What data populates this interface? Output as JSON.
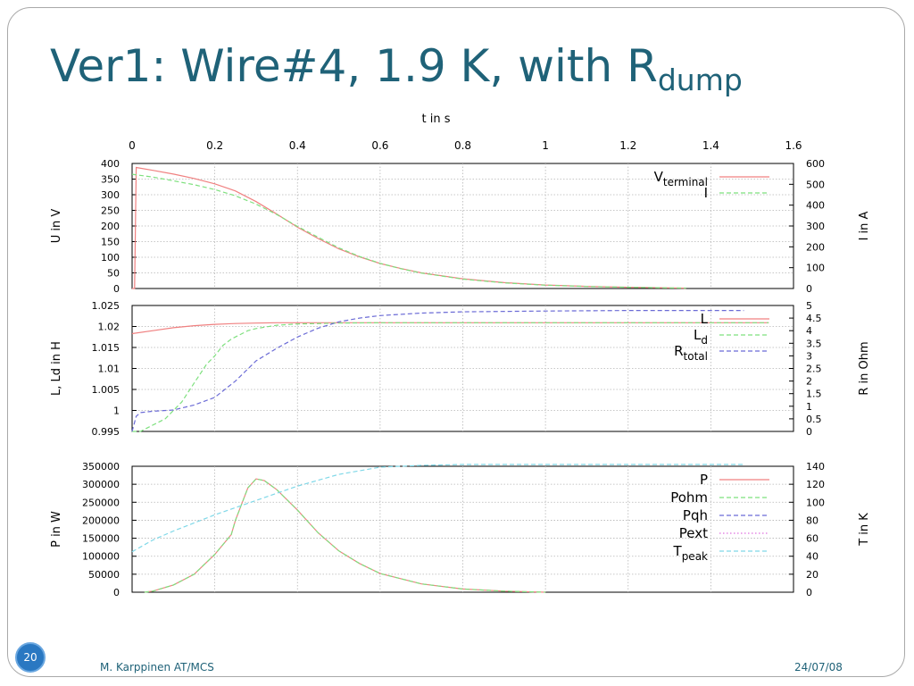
{
  "slide": {
    "title_main": "Ver1: Wire#4, 1.9 K, with R",
    "title_sub": "dump",
    "number": "20",
    "author": "M. Karppinen AT/MCS",
    "date": "24/07/08",
    "title_color": "#1f6278",
    "badge_color": "#2a78c2"
  },
  "chart_data": {
    "type": "line",
    "x_axis": {
      "label": "t in s",
      "range": [
        0,
        1.6
      ],
      "ticks": [
        "0",
        "0.2",
        "0.4",
        "0.6",
        "0.8",
        "1",
        "1.2",
        "1.4",
        "1.6"
      ],
      "position": "top"
    },
    "grid": true,
    "legend_position": "top-right",
    "panels": [
      {
        "name": "voltage-current",
        "left_axis": {
          "label": "U in V",
          "range": [
            0,
            400
          ],
          "ticks": [
            "0",
            "50",
            "100",
            "150",
            "200",
            "250",
            "300",
            "350",
            "400"
          ]
        },
        "right_axis": {
          "label": "I in A",
          "range": [
            0,
            600
          ],
          "ticks": [
            "0",
            "100",
            "200",
            "300",
            "400",
            "500",
            "600"
          ]
        },
        "legend": [
          {
            "main": "V",
            "sub": "terminal"
          },
          {
            "main": "I",
            "sub": ""
          }
        ],
        "series": [
          {
            "name": "Vterminal",
            "axis": "left",
            "color": "#f08080",
            "style": "solid",
            "x": [
              0.0,
              0.006,
              0.01,
              0.05,
              0.1,
              0.15,
              0.2,
              0.25,
              0.3,
              0.35,
              0.4,
              0.45,
              0.5,
              0.55,
              0.6,
              0.65,
              0.7,
              0.8,
              0.9,
              1.0,
              1.1,
              1.2,
              1.3,
              1.34
            ],
            "y": [
              0,
              0,
              387,
              378,
              366,
              352,
              335,
              312,
              278,
              238,
              196,
              160,
              127,
              101,
              80,
              64,
              50,
              31,
              19,
              11,
              7,
              4,
              2,
              1
            ]
          },
          {
            "name": "I",
            "axis": "right",
            "color": "#7ee07e",
            "style": "dashed",
            "x": [
              0.0,
              0.05,
              0.1,
              0.15,
              0.2,
              0.25,
              0.3,
              0.35,
              0.4,
              0.45,
              0.5,
              0.55,
              0.6,
              0.65,
              0.7,
              0.8,
              0.9,
              1.0,
              1.1,
              1.2,
              1.3,
              1.34
            ],
            "y": [
              548,
              535,
              517,
              498,
              475,
              445,
              405,
              355,
              298,
              246,
              195,
              154,
              121,
              95,
              74,
              45,
              27,
              16,
              10,
              6,
              3,
              2
            ]
          }
        ]
      },
      {
        "name": "inductance-resistance",
        "left_axis": {
          "label": "L, Ld in H",
          "range": [
            0.995,
            1.025
          ],
          "ticks": [
            "0.995",
            "1",
            "1.005",
            "1.01",
            "1.015",
            "1.02",
            "1.025"
          ]
        },
        "right_axis": {
          "label": "R in Ohm",
          "range": [
            0,
            5
          ],
          "ticks": [
            "0",
            "0.5",
            "1",
            "1.5",
            "2",
            "2.5",
            "3",
            "3.5",
            "4",
            "4.5",
            "5"
          ]
        },
        "legend": [
          {
            "main": "L",
            "sub": ""
          },
          {
            "main": "L",
            "sub": "d"
          },
          {
            "main": "R",
            "sub": "total"
          }
        ],
        "series": [
          {
            "name": "L",
            "axis": "left",
            "color": "#f08080",
            "style": "solid",
            "x": [
              0.0,
              0.05,
              0.1,
              0.15,
              0.2,
              0.25,
              0.3,
              0.35,
              0.4,
              0.5,
              0.6,
              0.8,
              1.0,
              1.2,
              1.4,
              1.54
            ],
            "y": [
              1.0183,
              1.019,
              1.0197,
              1.0202,
              1.0205,
              1.0207,
              1.0208,
              1.0209,
              1.0209,
              1.0209,
              1.0209,
              1.0209,
              1.0209,
              1.0209,
              1.0209,
              1.0209
            ]
          },
          {
            "name": "Ld",
            "axis": "left",
            "color": "#7ee07e",
            "style": "dashed",
            "x": [
              0.0,
              0.02,
              0.05,
              0.08,
              0.1,
              0.12,
              0.14,
              0.16,
              0.18,
              0.2,
              0.22,
              0.24,
              0.26,
              0.28,
              0.3,
              0.35,
              0.4,
              0.5,
              0.6,
              0.8,
              1.0,
              1.2,
              1.4,
              1.54
            ],
            "y": [
              0.995,
              0.995,
              0.9965,
              0.998,
              1.0,
              1.002,
              1.005,
              1.008,
              1.011,
              1.013,
              1.0155,
              1.017,
              1.018,
              1.019,
              1.0195,
              1.0203,
              1.0206,
              1.0208,
              1.0209,
              1.0209,
              1.0209,
              1.0209,
              1.0209,
              1.0209
            ]
          },
          {
            "name": "Rtotal",
            "axis": "right",
            "color": "#6b6bd6",
            "style": "dashed",
            "x": [
              0.0,
              0.01,
              0.02,
              0.05,
              0.1,
              0.15,
              0.2,
              0.25,
              0.3,
              0.35,
              0.4,
              0.45,
              0.5,
              0.55,
              0.6,
              0.7,
              0.8,
              1.0,
              1.2,
              1.4,
              1.48
            ],
            "y": [
              0,
              0.6,
              0.75,
              0.8,
              0.85,
              1.05,
              1.35,
              2.0,
              2.8,
              3.3,
              3.75,
              4.1,
              4.35,
              4.5,
              4.6,
              4.7,
              4.75,
              4.78,
              4.8,
              4.8,
              4.8
            ]
          }
        ]
      },
      {
        "name": "power-temperature",
        "left_axis": {
          "label": "P in W",
          "range": [
            0,
            350000
          ],
          "ticks": [
            "0",
            "50000",
            "100000",
            "150000",
            "200000",
            "250000",
            "300000",
            "350000"
          ]
        },
        "right_axis": {
          "label": "T in K",
          "range": [
            0,
            140
          ],
          "ticks": [
            "0",
            "20",
            "40",
            "60",
            "80",
            "100",
            "120",
            "140"
          ]
        },
        "legend": [
          {
            "main": "P",
            "sub": ""
          },
          {
            "main": "Pohm",
            "sub": ""
          },
          {
            "main": "Pqh",
            "sub": ""
          },
          {
            "main": "Pext",
            "sub": ""
          },
          {
            "main": "T",
            "sub": "peak"
          }
        ],
        "series": [
          {
            "name": "P",
            "axis": "left",
            "color": "#f08080",
            "style": "solid",
            "x": [
              0.03,
              0.05,
              0.1,
              0.15,
              0.2,
              0.24,
              0.25,
              0.28,
              0.3,
              0.32,
              0.35,
              0.4,
              0.45,
              0.5,
              0.55,
              0.6,
              0.7,
              0.8,
              0.9,
              1.0
            ],
            "y": [
              0,
              3000,
              20000,
              50000,
              105000,
              160000,
              200000,
              290000,
              315000,
              310000,
              285000,
              228000,
              165000,
              115000,
              80000,
              52000,
              23000,
              9000,
              3000,
              0
            ]
          },
          {
            "name": "Pohm",
            "axis": "left",
            "color": "#7ee07e",
            "style": "dashed",
            "x": [
              0.03,
              0.05,
              0.1,
              0.15,
              0.2,
              0.24,
              0.25,
              0.28,
              0.3,
              0.32,
              0.35,
              0.4,
              0.45,
              0.5,
              0.55,
              0.6,
              0.7,
              0.8,
              0.9,
              1.0
            ],
            "y": [
              0,
              3000,
              20000,
              50000,
              105000,
              160000,
              200000,
              290000,
              315000,
              310000,
              285000,
              228000,
              165000,
              115000,
              80000,
              52000,
              23000,
              9000,
              3000,
              0
            ]
          },
          {
            "name": "Pqh",
            "axis": "left",
            "color": "#6b6bd6",
            "style": "dashed",
            "x": [],
            "y": []
          },
          {
            "name": "Pext",
            "axis": "left",
            "color": "#e070e0",
            "style": "dotted",
            "x": [],
            "y": []
          },
          {
            "name": "Tpeak",
            "axis": "right",
            "color": "#7fd8e8",
            "style": "dashed",
            "x": [
              0.0,
              0.05,
              0.1,
              0.2,
              0.3,
              0.4,
              0.5,
              0.6,
              0.7,
              0.8,
              1.0,
              1.2,
              1.48
            ],
            "y": [
              45,
              58,
              68,
              86,
              102,
              118,
              131,
              139,
              141,
              142,
              142,
              142,
              142
            ]
          }
        ]
      }
    ]
  }
}
